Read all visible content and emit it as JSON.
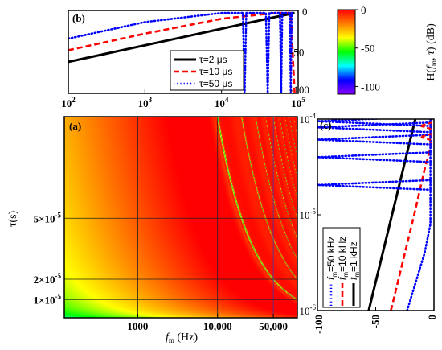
{
  "chart_data": [
    {
      "panel": "(a)",
      "type": "heatmap",
      "title": "",
      "xlabel_main": "f",
      "xlabel_sub": "m",
      "xlabel_unit": " (Hz)",
      "ylabel": "τ(s)",
      "x_scale": "log",
      "xlim": [
        120,
        100000
      ],
      "ylim": [
        1e-06,
        0.0001
      ],
      "x_ticks": [
        1000,
        10000,
        50000
      ],
      "x_tick_labels": [
        "1000",
        "10,000",
        "50,000"
      ],
      "y_ticks": [
        5e-05,
        1e-05,
        2e-05
      ],
      "y_tick_labels": [
        {
          "mant": "5×10",
          "exp": "-5"
        },
        {
          "mant": "1×10",
          "exp": "-5"
        },
        {
          "mant": "2×10",
          "exp": "-5"
        }
      ],
      "colormap": "rainbow",
      "zlim": [
        -110,
        0
      ],
      "grid": true
    },
    {
      "panel": "(b)",
      "type": "line",
      "x_scale": "log",
      "xlim": [
        100,
        100000
      ],
      "ylim": [
        -100,
        0
      ],
      "x_tick_labels": [
        {
          "base": "10",
          "exp": "2"
        },
        {
          "base": "10",
          "exp": "3"
        },
        {
          "base": "10",
          "exp": "4"
        },
        {
          "base": "10",
          "exp": "5"
        }
      ],
      "y_tick_labels": [
        "0",
        "-50",
        "-100"
      ],
      "legend": "lower-right",
      "series": [
        {
          "name": "τ=2 μs",
          "color": "#000000",
          "style": "solid",
          "x": [
            100,
            1000,
            10000,
            50000,
            90000
          ],
          "y": [
            -62,
            -42,
            -22,
            -8,
            -3
          ]
        },
        {
          "name": "τ=10 μs",
          "color": "#ff0000",
          "style": "dashed",
          "x": [
            100,
            1000,
            10000,
            50000,
            80000,
            90000,
            95000
          ],
          "y": [
            -48,
            -28,
            -10,
            -3,
            -3,
            -100,
            -100
          ]
        },
        {
          "name": "τ=50 μs",
          "color": "#0000ff",
          "style": "dotted",
          "x": [
            100,
            1000,
            10000,
            19000,
            20000,
            21000,
            38000,
            40000,
            42000,
            58000,
            60000,
            62000,
            78000,
            80000,
            82000,
            90000
          ],
          "y": [
            -34,
            -14,
            -3,
            -3,
            -100,
            -3,
            -3,
            -100,
            -3,
            -3,
            -100,
            -3,
            -3,
            -100,
            -3,
            -3
          ]
        }
      ]
    },
    {
      "panel": "(c)",
      "type": "line",
      "orientation": "rotated",
      "y_scale": "log",
      "xlim": [
        -100,
        0
      ],
      "ylim": [
        1e-06,
        0.0001
      ],
      "x_tick_labels": [
        "-100",
        "-50",
        "0"
      ],
      "y_tick_labels": [
        {
          "base": "10",
          "exp": "-4"
        },
        {
          "base": "10",
          "exp": "-5"
        },
        {
          "base": "10",
          "exp": "-6"
        }
      ],
      "legend": "lower-left",
      "series": [
        {
          "name_main": "f",
          "name_sub": "m",
          "name_rest": "=1 kHz",
          "color": "#000000",
          "style": "solid",
          "tau": [
            1e-06,
            1e-05,
            0.0001
          ],
          "h": [
            -56,
            -36,
            -16
          ]
        },
        {
          "name_main": "f",
          "name_sub": "m",
          "name_rest": "=10 kHz",
          "color": "#ff0000",
          "style": "dashed",
          "tau": [
            1e-06,
            1e-05,
            3e-05,
            5e-05,
            8e-05,
            0.0001
          ],
          "h": [
            -37,
            -17,
            -8,
            -3,
            -3,
            -2
          ]
        },
        {
          "name_main": "f",
          "name_sub": "m",
          "name_rest": "=50 kHz",
          "color": "#0000ff",
          "style": "dotted",
          "tau": [
            1e-06,
            4e-06,
            8e-06,
            1e-05,
            2e-05,
            4e-05,
            6e-05,
            8e-05,
            0.0001
          ],
          "h": [
            -23,
            -8,
            -3,
            -3,
            -3,
            -3,
            -3,
            -3,
            -3
          ]
        }
      ]
    },
    {
      "panel": "colorbar",
      "type": "colorbar",
      "label_parts": [
        "H(",
        "f",
        "m",
        ", ",
        "τ",
        ") (dB)"
      ],
      "zlim": [
        -110,
        0
      ],
      "tick_values": [
        0,
        -50,
        -100
      ],
      "tick_labels": [
        "0",
        "-50",
        "-100"
      ],
      "colors": [
        "#ff0000",
        "#ff7f00",
        "#ffff00",
        "#00ff00",
        "#00ffff",
        "#0000ff",
        "#8b00ff"
      ]
    }
  ]
}
